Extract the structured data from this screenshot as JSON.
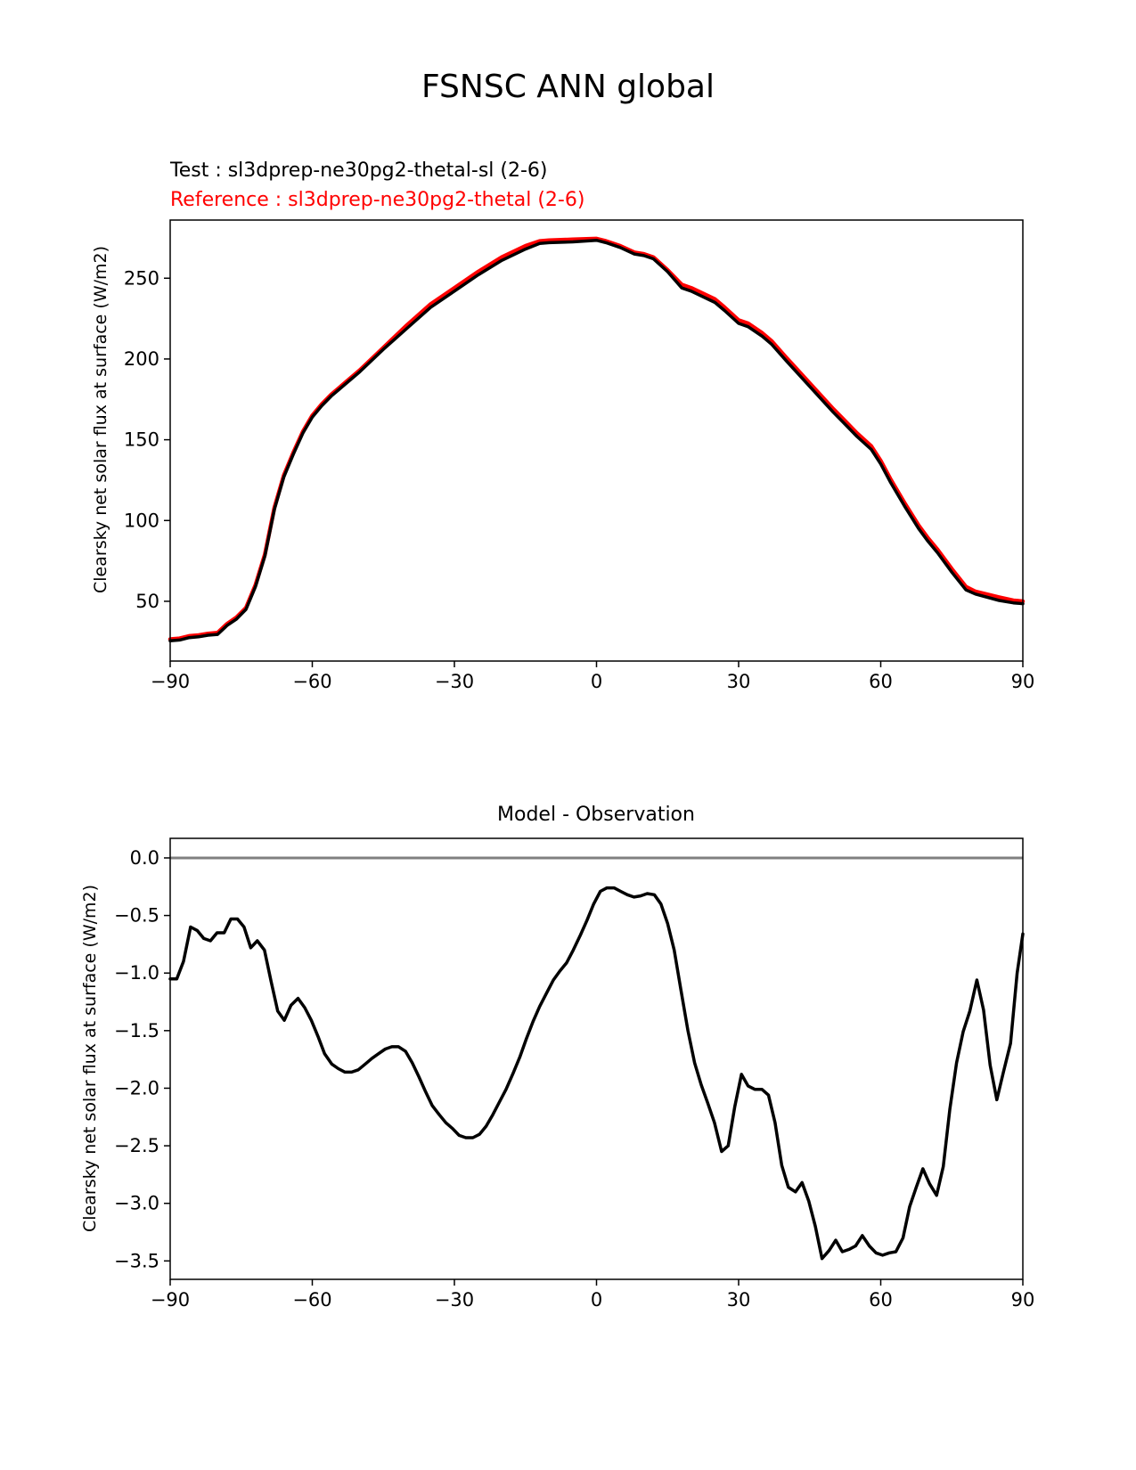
{
  "figure": {
    "title": "FSNSC ANN global"
  },
  "chart_data": [
    {
      "type": "line",
      "title_lines": [
        {
          "text": "Test : sl3dprep-ne30pg2-thetal-sl (2-6)",
          "color": "#000000"
        },
        {
          "text": "Reference : sl3dprep-ne30pg2-thetal (2-6)",
          "color": "#ff0000"
        }
      ],
      "xlabel": "",
      "ylabel": "Clearsky net solar flux at surface (W/m2)",
      "xlim": [
        -90,
        90
      ],
      "ylim": [
        13,
        286
      ],
      "xticks": [
        -90,
        -60,
        -30,
        0,
        30,
        60,
        90
      ],
      "xtick_labels": [
        "−90",
        "−60",
        "−30",
        "0",
        "30",
        "60",
        "90"
      ],
      "yticks": [
        50,
        100,
        150,
        200,
        250
      ],
      "ytick_labels": [
        "50",
        "100",
        "150",
        "200",
        "250"
      ],
      "grid": false,
      "series": [
        {
          "role": "reference",
          "color": "#ff0000",
          "x": [
            -90,
            -88,
            -86,
            -84,
            -82,
            -80,
            -78,
            -76,
            -74,
            -72,
            -70,
            -68,
            -66,
            -64,
            -62,
            -60,
            -58,
            -56,
            -54,
            -52,
            -50,
            -45,
            -40,
            -35,
            -30,
            -25,
            -20,
            -15,
            -12,
            -10,
            -5,
            0,
            2,
            5,
            8,
            10,
            12,
            15,
            18,
            20,
            25,
            27,
            30,
            32,
            35,
            37,
            40,
            45,
            50,
            52,
            55,
            58,
            60,
            62,
            65,
            68,
            70,
            72,
            75,
            78,
            80,
            85,
            88,
            90
          ],
          "y": [
            26.5,
            27,
            28.5,
            29,
            30,
            30.5,
            36,
            40,
            46,
            60,
            79,
            108,
            128,
            142,
            155,
            165,
            172,
            178,
            183,
            188,
            193,
            207,
            221,
            234,
            244,
            254,
            263,
            270,
            273,
            273.5,
            274,
            274.5,
            273,
            270,
            266,
            265,
            263,
            255,
            246,
            244,
            237,
            232,
            224,
            222,
            216,
            211,
            201,
            185,
            169,
            163,
            154,
            146,
            137,
            126,
            111,
            97,
            89,
            82,
            70,
            59,
            56,
            52.5,
            50.5,
            50
          ]
        },
        {
          "role": "test",
          "color": "#000000",
          "x": [
            -90,
            -88,
            -86,
            -84,
            -82,
            -80,
            -78,
            -76,
            -74,
            -72,
            -70,
            -68,
            -66,
            -64,
            -62,
            -60,
            -58,
            -56,
            -54,
            -52,
            -50,
            -45,
            -40,
            -35,
            -30,
            -25,
            -20,
            -15,
            -12,
            -10,
            -5,
            0,
            2,
            5,
            8,
            10,
            12,
            15,
            18,
            20,
            25,
            27,
            30,
            32,
            35,
            37,
            40,
            45,
            50,
            52,
            55,
            58,
            60,
            62,
            65,
            68,
            70,
            72,
            75,
            78,
            80,
            85,
            88,
            90
          ],
          "y": [
            25.5,
            26,
            27.5,
            28,
            29,
            29.5,
            35,
            39,
            45,
            59,
            78,
            107,
            127,
            141,
            154,
            164,
            171,
            177,
            182,
            187,
            192,
            206,
            219,
            232,
            242,
            252,
            261,
            268,
            271.5,
            272,
            272.5,
            273.5,
            272,
            269,
            265,
            264,
            262,
            254,
            244,
            242,
            235,
            230,
            222,
            220,
            214,
            209,
            199,
            183,
            167,
            161,
            152,
            144,
            135,
            124,
            109,
            95,
            87,
            80,
            68,
            57,
            54.5,
            50.5,
            49,
            48.5
          ]
        }
      ]
    },
    {
      "type": "line",
      "title": "Model - Observation",
      "xlabel": "",
      "ylabel": "Clearsky net solar flux at surface (W/m2)",
      "xlim": [
        -90,
        90
      ],
      "ylim": [
        -3.66,
        0.17
      ],
      "xticks": [
        -90,
        -60,
        -30,
        0,
        30,
        60,
        90
      ],
      "xtick_labels": [
        "−90",
        "−60",
        "−30",
        "0",
        "30",
        "60",
        "90"
      ],
      "yticks": [
        0.0,
        -0.5,
        -1.0,
        -1.5,
        -2.0,
        -2.5,
        -3.0,
        -3.5
      ],
      "ytick_labels": [
        "0.0",
        "−0.5",
        "−1.0",
        "−1.5",
        "−2.0",
        "−2.5",
        "−3.0",
        "−3.5"
      ],
      "grid": false,
      "reference_line": {
        "y": 0,
        "color": "#808080"
      },
      "series": [
        {
          "role": "difference",
          "color": "#000000",
          "x": [
            -90,
            -88.6,
            -87.2,
            -85.7,
            -84.3,
            -82.9,
            -81.5,
            -80.1,
            -78.6,
            -77.2,
            -75.8,
            -74.4,
            -73,
            -71.6,
            -70.1,
            -68.7,
            -67.3,
            -65.9,
            -64.5,
            -63,
            -61.6,
            -60.2,
            -58.8,
            -57.4,
            -55.9,
            -54.5,
            -53.1,
            -51.7,
            -50.3,
            -48.8,
            -47.4,
            -46,
            -44.6,
            -43.2,
            -41.8,
            -40.3,
            -38.9,
            -37.5,
            -36.1,
            -34.7,
            -33.2,
            -31.8,
            -30.4,
            -29,
            -27.6,
            -26.1,
            -24.7,
            -23.3,
            -21.9,
            -20.5,
            -19.1,
            -17.6,
            -16.2,
            -14.8,
            -13.4,
            -12,
            -10.5,
            -9.1,
            -7.7,
            -6.3,
            -4.9,
            -3.4,
            -2,
            -0.6,
            0.8,
            2.2,
            3.7,
            5.1,
            6.5,
            7.9,
            9.3,
            10.7,
            12.2,
            13.6,
            15,
            16.4,
            17.8,
            19.3,
            20.7,
            22.1,
            23.5,
            24.9,
            26.4,
            27.8,
            29.2,
            30.6,
            32,
            33.4,
            34.9,
            36.3,
            37.7,
            39.1,
            40.5,
            42,
            43.4,
            44.8,
            46.2,
            47.6,
            49.1,
            50.5,
            51.9,
            53.3,
            54.7,
            56.1,
            57.6,
            59,
            60.4,
            61.8,
            63.2,
            64.7,
            66.1,
            67.5,
            68.9,
            70.3,
            71.8,
            73.2,
            74.6,
            76,
            77.4,
            78.8,
            80.3,
            81.7,
            83.1,
            84.5,
            85.9,
            87.4,
            88.8,
            90
          ],
          "y": [
            -1.05,
            -1.05,
            -0.9,
            -0.6,
            -0.63,
            -0.7,
            -0.72,
            -0.65,
            -0.65,
            -0.53,
            -0.53,
            -0.6,
            -0.78,
            -0.72,
            -0.8,
            -1.07,
            -1.33,
            -1.41,
            -1.28,
            -1.22,
            -1.3,
            -1.41,
            -1.55,
            -1.7,
            -1.79,
            -1.83,
            -1.86,
            -1.86,
            -1.84,
            -1.79,
            -1.74,
            -1.7,
            -1.66,
            -1.64,
            -1.64,
            -1.68,
            -1.78,
            -1.9,
            -2.03,
            -2.15,
            -2.23,
            -2.3,
            -2.35,
            -2.41,
            -2.43,
            -2.43,
            -2.4,
            -2.33,
            -2.23,
            -2.12,
            -2.01,
            -1.87,
            -1.73,
            -1.57,
            -1.42,
            -1.29,
            -1.17,
            -1.06,
            -0.98,
            -0.91,
            -0.8,
            -0.67,
            -0.54,
            -0.4,
            -0.29,
            -0.26,
            -0.26,
            -0.29,
            -0.32,
            -0.34,
            -0.33,
            -0.31,
            -0.32,
            -0.4,
            -0.57,
            -0.8,
            -1.14,
            -1.5,
            -1.78,
            -1.97,
            -2.13,
            -2.3,
            -2.55,
            -2.5,
            -2.16,
            -1.88,
            -1.98,
            -2.01,
            -2.01,
            -2.06,
            -2.3,
            -2.67,
            -2.86,
            -2.9,
            -2.82,
            -2.98,
            -3.2,
            -3.48,
            -3.41,
            -3.32,
            -3.42,
            -3.4,
            -3.37,
            -3.28,
            -3.37,
            -3.43,
            -3.45,
            -3.43,
            -3.42,
            -3.3,
            -3.03,
            -2.86,
            -2.7,
            -2.83,
            -2.93,
            -2.68,
            -2.18,
            -1.78,
            -1.51,
            -1.33,
            -1.06,
            -1.32,
            -1.8,
            -2.1,
            -1.86,
            -1.61,
            -1.0,
            -0.66
          ]
        }
      ]
    }
  ]
}
